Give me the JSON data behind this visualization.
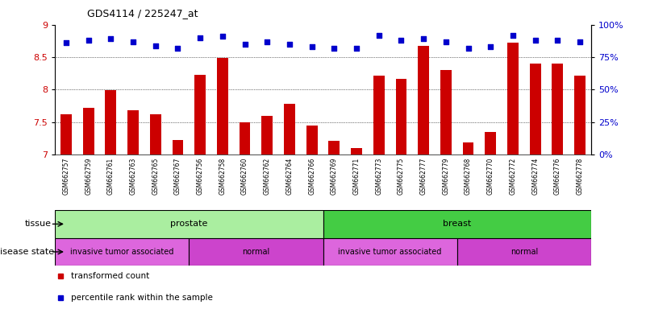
{
  "title": "GDS4114 / 225247_at",
  "samples": [
    "GSM662757",
    "GSM662759",
    "GSM662761",
    "GSM662763",
    "GSM662765",
    "GSM662767",
    "GSM662756",
    "GSM662758",
    "GSM662760",
    "GSM662762",
    "GSM662764",
    "GSM662766",
    "GSM662769",
    "GSM662771",
    "GSM662773",
    "GSM662775",
    "GSM662777",
    "GSM662779",
    "GSM662768",
    "GSM662770",
    "GSM662772",
    "GSM662774",
    "GSM662776",
    "GSM662778"
  ],
  "bar_values": [
    7.62,
    7.72,
    7.99,
    7.68,
    7.62,
    7.22,
    8.23,
    8.49,
    7.49,
    7.6,
    7.78,
    7.45,
    7.21,
    7.1,
    8.22,
    8.17,
    8.67,
    8.3,
    7.18,
    7.35,
    8.72,
    8.4,
    8.4,
    8.22
  ],
  "dot_values": [
    86,
    88,
    89,
    87,
    84,
    82,
    90,
    91,
    85,
    87,
    85,
    83,
    82,
    82,
    92,
    88,
    89,
    87,
    82,
    83,
    92,
    88,
    88,
    87
  ],
  "bar_color": "#cc0000",
  "dot_color": "#0000cc",
  "ylim_left": [
    7.0,
    9.0
  ],
  "ylim_right": [
    0,
    100
  ],
  "yticks_left": [
    7.0,
    7.5,
    8.0,
    8.5,
    9.0
  ],
  "ytick_labels_left": [
    "7",
    "7.5",
    "8",
    "8.5",
    "9"
  ],
  "yticks_right": [
    0,
    25,
    50,
    75,
    100
  ],
  "ytick_labels_right": [
    "0%",
    "25%",
    "50%",
    "75%",
    "100%"
  ],
  "grid_vals": [
    7.5,
    8.0,
    8.5
  ],
  "tissue_groups": [
    {
      "label": "prostate",
      "start": 0,
      "end": 12,
      "color": "#aaeea0"
    },
    {
      "label": "breast",
      "start": 12,
      "end": 24,
      "color": "#44cc44"
    }
  ],
  "disease_groups": [
    {
      "label": "invasive tumor associated",
      "start": 0,
      "end": 6,
      "color": "#dd66dd"
    },
    {
      "label": "normal",
      "start": 6,
      "end": 12,
      "color": "#cc44cc"
    },
    {
      "label": "invasive tumor associated",
      "start": 12,
      "end": 18,
      "color": "#dd66dd"
    },
    {
      "label": "normal",
      "start": 18,
      "end": 24,
      "color": "#cc44cc"
    }
  ],
  "legend_items": [
    {
      "label": "transformed count",
      "color": "#cc0000"
    },
    {
      "label": "percentile rank within the sample",
      "color": "#0000cc"
    }
  ],
  "tissue_label": "tissue",
  "disease_label": "disease state"
}
